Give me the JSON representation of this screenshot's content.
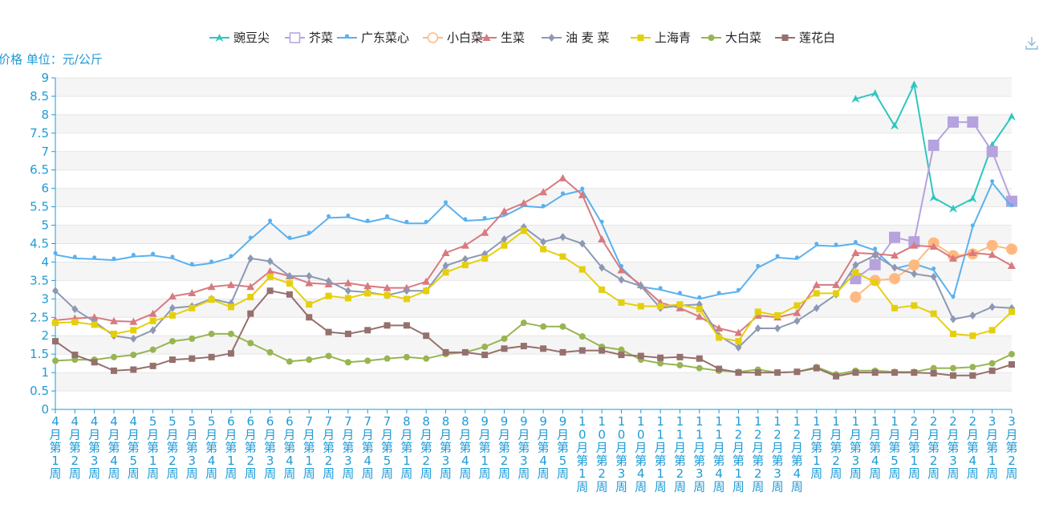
{
  "toolbar": {
    "download_icon": "download-icon"
  },
  "chart_data": {
    "type": "line",
    "ylabel": "价格 单位：元/公斤",
    "ylim": [
      0,
      9
    ],
    "yticks": [
      0,
      0.5,
      1,
      1.5,
      2,
      2.5,
      3,
      3.5,
      4,
      4.5,
      5,
      5.5,
      6,
      6.5,
      7,
      7.5,
      8,
      8.5,
      9
    ],
    "grid": "horizontal",
    "legend_position": "top-center",
    "categories": [
      "4月第1周",
      "4月第2周",
      "4月第3周",
      "4月第4周",
      "4月第5周",
      "5月第1周",
      "5月第2周",
      "5月第3周",
      "5月第4周",
      "6月第1周",
      "6月第2周",
      "6月第3周",
      "6月第4周",
      "7月第1周",
      "7月第2周",
      "7月第3周",
      "7月第4周",
      "7月第5周",
      "8月第1周",
      "8月第2周",
      "8月第3周",
      "8月第4周",
      "9月第1周",
      "9月第2周",
      "9月第3周",
      "9月第4周",
      "9月第5周",
      "10月第1周",
      "10月第2周",
      "10月第3周",
      "10月第4周",
      "11月第1周",
      "11月第2周",
      "11月第3周",
      "11月第4周",
      "12月第1周",
      "12月第2周",
      "12月第3周",
      "12月第4周",
      "1月第1周",
      "1月第2周",
      "1月第3周",
      "1月第4周",
      "1月第5周",
      "2月第1周",
      "2月第2周",
      "2月第3周",
      "2月第4周",
      "3月第1周",
      "3月第2周"
    ],
    "series": [
      {
        "name": "豌豆尖",
        "color": "#2ec7c0",
        "marker": "arrow",
        "values": [
          null,
          null,
          null,
          null,
          null,
          null,
          null,
          null,
          null,
          null,
          null,
          null,
          null,
          null,
          null,
          null,
          null,
          null,
          null,
          null,
          null,
          null,
          null,
          null,
          null,
          null,
          null,
          null,
          null,
          null,
          null,
          null,
          null,
          null,
          null,
          null,
          null,
          null,
          null,
          null,
          null,
          8.43,
          8.58,
          7.7,
          8.82,
          5.75,
          5.45,
          5.72,
          7.18,
          7.95
        ]
      },
      {
        "name": "芥菜",
        "color": "#b6a2de",
        "marker": "square-large",
        "values": [
          null,
          null,
          null,
          null,
          null,
          null,
          null,
          null,
          null,
          null,
          null,
          null,
          null,
          null,
          null,
          null,
          null,
          null,
          null,
          null,
          null,
          null,
          null,
          null,
          null,
          null,
          null,
          null,
          null,
          null,
          null,
          null,
          null,
          null,
          null,
          null,
          null,
          null,
          null,
          null,
          null,
          3.55,
          3.93,
          4.67,
          4.55,
          7.17,
          7.8,
          7.8,
          7.0,
          5.65
        ]
      },
      {
        "name": "广东菜心",
        "color": "#5ab1ef",
        "marker": "pin",
        "values": [
          4.2,
          4.1,
          4.08,
          4.05,
          4.15,
          4.18,
          4.1,
          3.9,
          3.97,
          4.12,
          4.62,
          5.08,
          4.62,
          4.75,
          5.2,
          5.22,
          5.08,
          5.2,
          5.05,
          5.05,
          5.58,
          5.12,
          5.15,
          5.25,
          5.52,
          5.48,
          5.82,
          5.95,
          5.05,
          3.85,
          3.33,
          3.25,
          3.12,
          3.0,
          3.12,
          3.2,
          3.85,
          4.12,
          4.08,
          4.45,
          4.43,
          4.5,
          4.32,
          3.82,
          3.95,
          3.78,
          3.02,
          4.95,
          6.15,
          5.5
        ]
      },
      {
        "name": "小白菜",
        "color": "#ffb980",
        "marker": "circle-large",
        "values": [
          null,
          null,
          null,
          null,
          null,
          null,
          null,
          null,
          null,
          null,
          null,
          null,
          null,
          null,
          null,
          null,
          null,
          null,
          null,
          null,
          null,
          null,
          null,
          null,
          null,
          null,
          null,
          null,
          null,
          null,
          null,
          null,
          null,
          null,
          null,
          null,
          null,
          null,
          null,
          null,
          null,
          3.05,
          3.5,
          3.55,
          3.92,
          4.52,
          4.17,
          4.22,
          4.45,
          4.35
        ]
      },
      {
        "name": "生菜",
        "color": "#d87a80",
        "marker": "triangle",
        "values": [
          2.42,
          2.47,
          2.5,
          2.4,
          2.38,
          2.6,
          3.07,
          3.16,
          3.33,
          3.38,
          3.33,
          3.75,
          3.62,
          3.43,
          3.4,
          3.43,
          3.35,
          3.3,
          3.3,
          3.47,
          4.25,
          4.45,
          4.8,
          5.38,
          5.6,
          5.9,
          6.28,
          5.82,
          4.62,
          3.78,
          3.38,
          2.9,
          2.75,
          2.52,
          2.2,
          2.08,
          2.55,
          2.5,
          2.62,
          3.38,
          3.38,
          4.25,
          4.22,
          4.18,
          4.45,
          4.42,
          4.1,
          4.25,
          4.2,
          3.9
        ]
      },
      {
        "name": "油 麦 菜",
        "color": "#8d98b3",
        "marker": "diamond",
        "values": [
          3.22,
          2.72,
          2.38,
          2.0,
          1.92,
          2.15,
          2.75,
          2.8,
          3.0,
          2.88,
          4.1,
          4.02,
          3.62,
          3.62,
          3.48,
          3.22,
          3.18,
          3.1,
          3.22,
          3.22,
          3.9,
          4.08,
          4.22,
          4.62,
          4.95,
          4.55,
          4.68,
          4.5,
          3.85,
          3.52,
          3.35,
          2.75,
          2.82,
          2.85,
          2.0,
          1.68,
          2.2,
          2.2,
          2.4,
          2.75,
          3.12,
          3.92,
          4.18,
          3.85,
          3.68,
          3.6,
          2.45,
          2.55,
          2.78,
          2.75
        ]
      },
      {
        "name": "上海青",
        "color": "#e5cf0d",
        "marker": "square",
        "values": [
          2.35,
          2.37,
          2.3,
          2.05,
          2.15,
          2.4,
          2.55,
          2.75,
          2.98,
          2.78,
          3.05,
          3.6,
          3.42,
          2.85,
          3.08,
          3.02,
          3.15,
          3.1,
          3.0,
          3.22,
          3.72,
          3.92,
          4.1,
          4.45,
          4.85,
          4.35,
          4.15,
          3.8,
          3.25,
          2.9,
          2.8,
          2.8,
          2.85,
          2.72,
          1.95,
          1.85,
          2.65,
          2.55,
          2.82,
          3.15,
          3.15,
          3.72,
          3.45,
          2.75,
          2.82,
          2.6,
          2.05,
          2.0,
          2.15,
          2.65
        ]
      },
      {
        "name": "大白菜",
        "color": "#97b552",
        "marker": "circle",
        "values": [
          1.32,
          1.35,
          1.35,
          1.42,
          1.48,
          1.62,
          1.85,
          1.92,
          2.05,
          2.05,
          1.8,
          1.55,
          1.3,
          1.35,
          1.45,
          1.28,
          1.32,
          1.38,
          1.42,
          1.38,
          1.5,
          1.55,
          1.7,
          1.92,
          2.35,
          2.25,
          2.25,
          1.98,
          1.7,
          1.62,
          1.35,
          1.25,
          1.2,
          1.12,
          1.05,
          1.02,
          1.08,
          1.0,
          1.02,
          1.15,
          0.95,
          1.05,
          1.05,
          1.02,
          1.02,
          1.12,
          1.12,
          1.15,
          1.25,
          1.5
        ]
      },
      {
        "name": "莲花白",
        "color": "#95706d",
        "marker": "square",
        "values": [
          1.85,
          1.48,
          1.28,
          1.05,
          1.08,
          1.18,
          1.35,
          1.38,
          1.42,
          1.52,
          2.6,
          3.22,
          3.12,
          2.5,
          2.1,
          2.05,
          2.15,
          2.28,
          2.28,
          2.0,
          1.55,
          1.55,
          1.48,
          1.65,
          1.72,
          1.65,
          1.55,
          1.6,
          1.6,
          1.48,
          1.45,
          1.4,
          1.42,
          1.38,
          1.1,
          1.0,
          1.0,
          1.0,
          1.02,
          1.12,
          0.9,
          1.0,
          1.0,
          1.0,
          1.0,
          0.98,
          0.92,
          0.92,
          1.05,
          1.22
        ]
      }
    ]
  }
}
